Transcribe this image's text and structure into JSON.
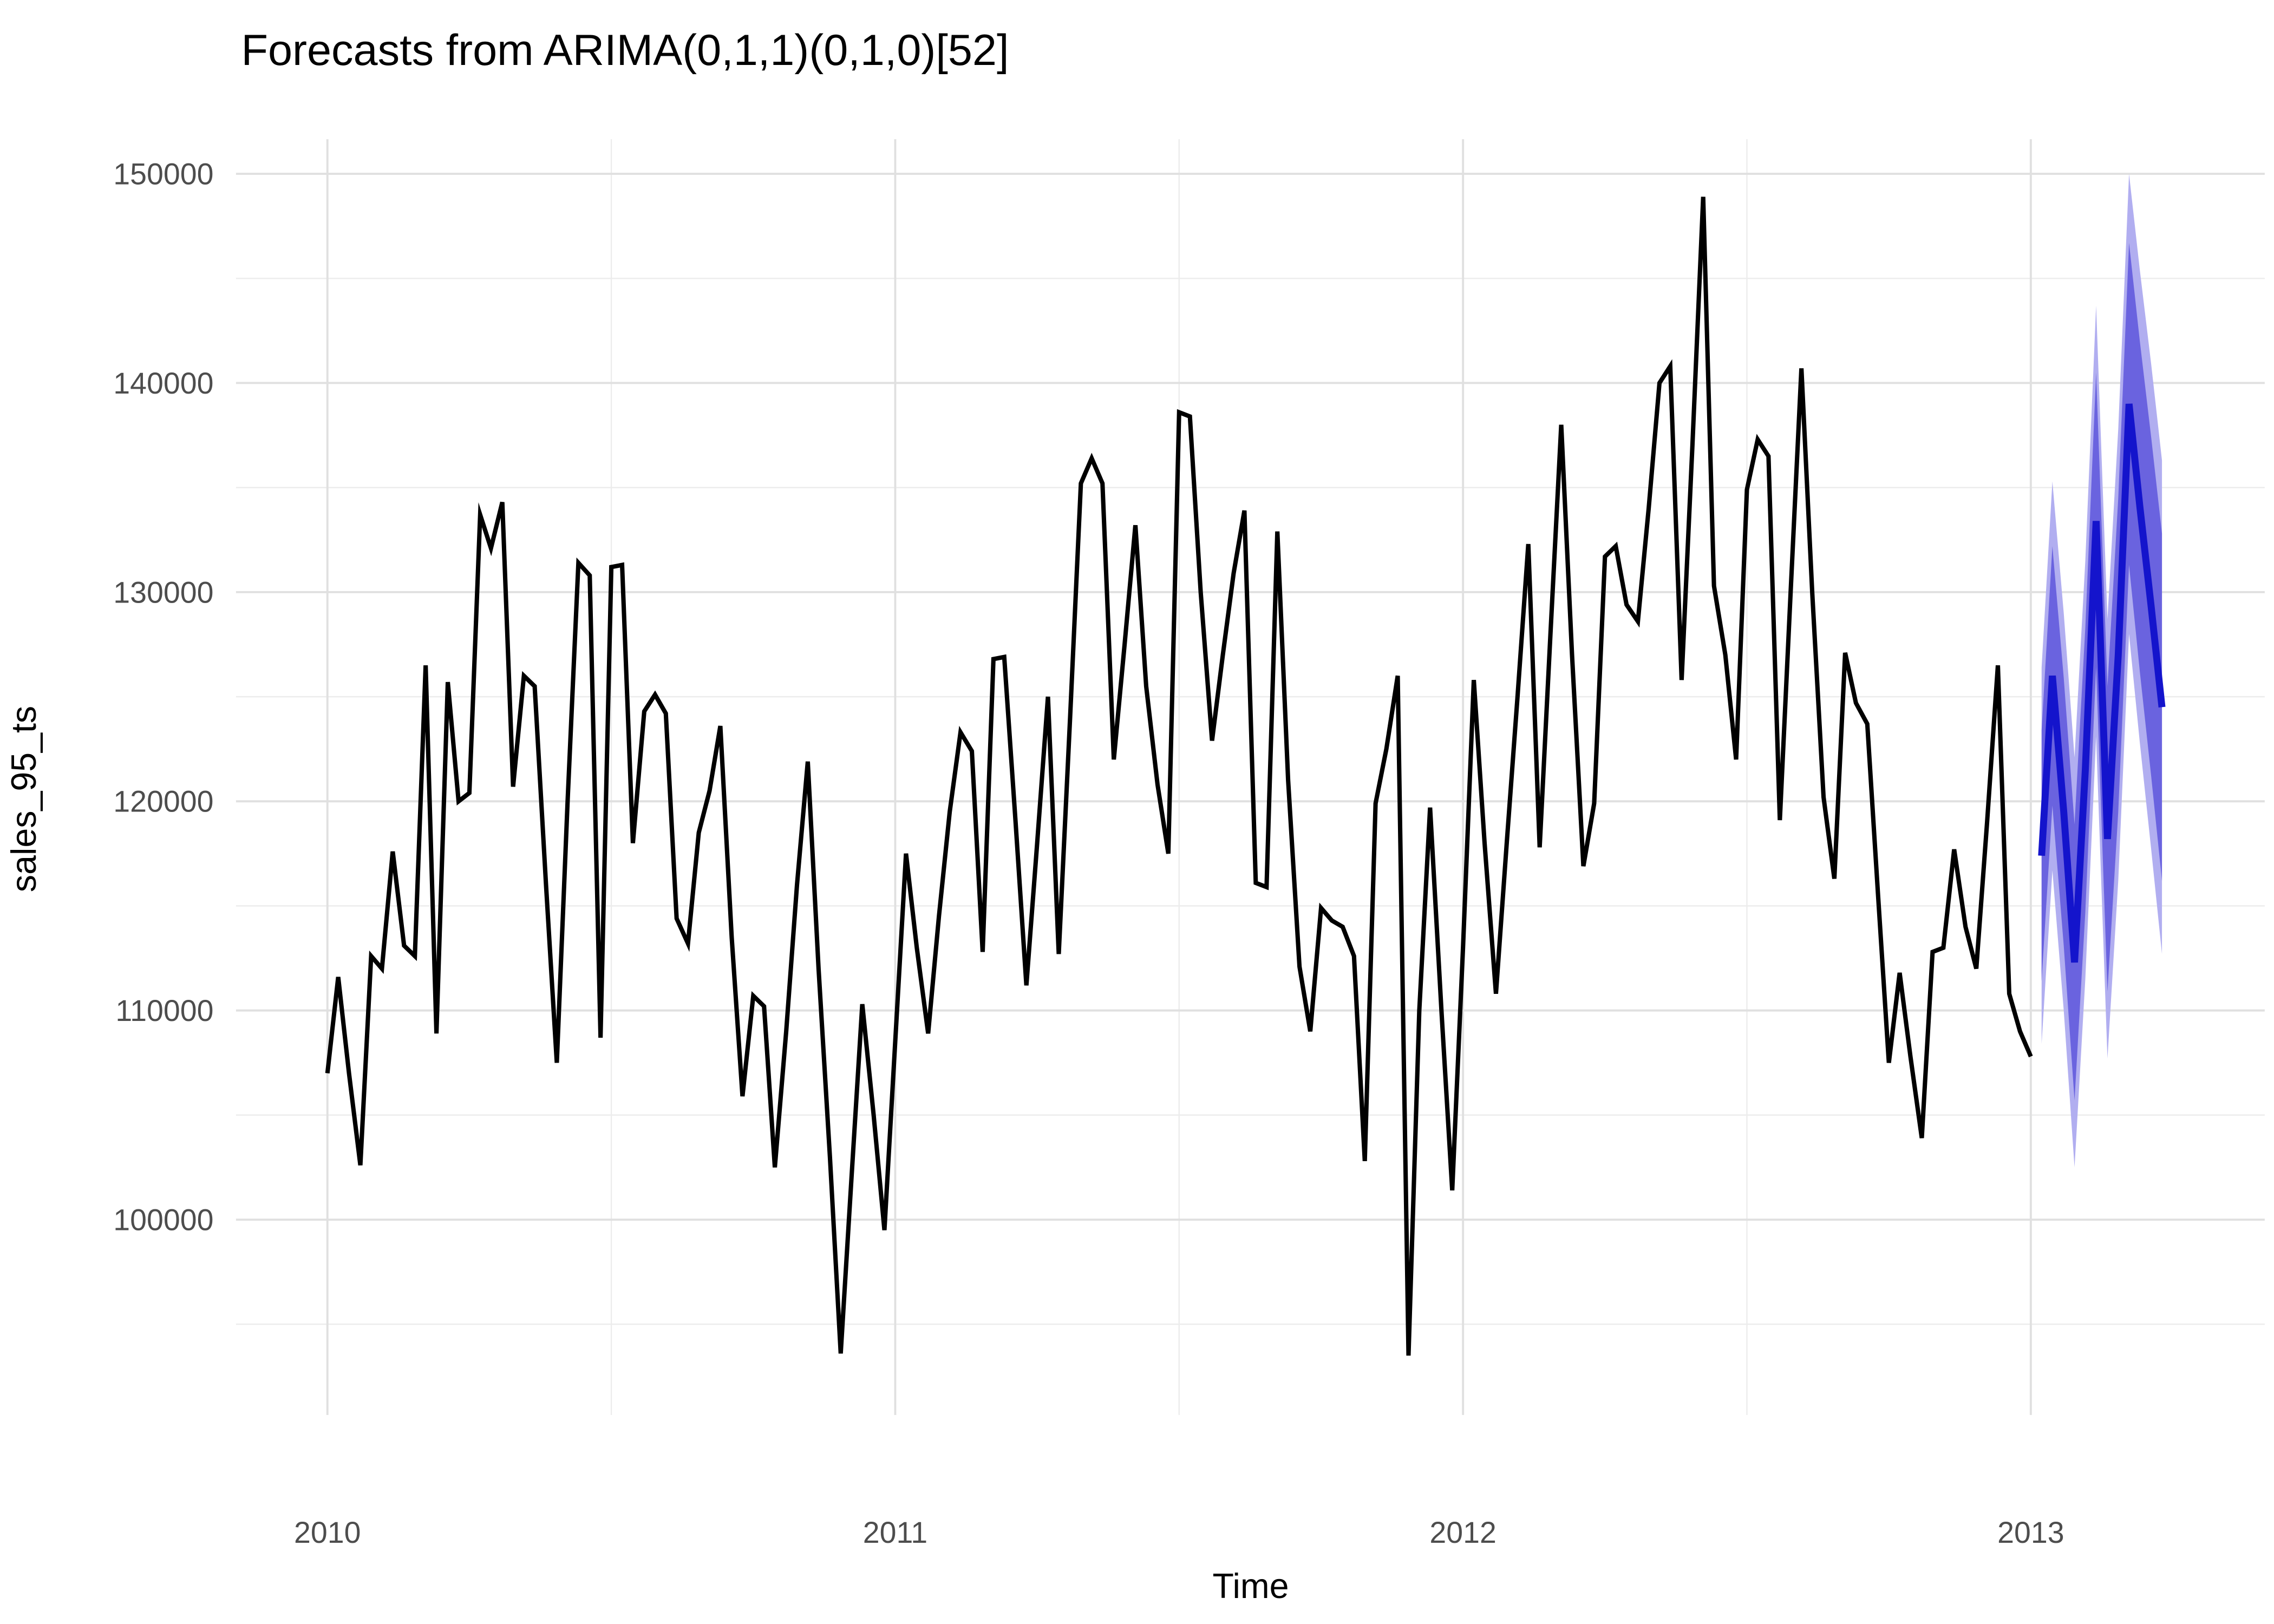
{
  "chart_data": {
    "type": "line",
    "title": "Forecasts from ARIMA(0,1,1)(0,1,0)[52]",
    "xlabel": "Time",
    "ylabel": "sales_95_ts",
    "x_range": [
      2009.839,
      2013.412
    ],
    "y_range": [
      90660,
      151656
    ],
    "x_major_ticks": [
      2010,
      2011,
      2012,
      2013
    ],
    "x_major_tick_labels": [
      "2010",
      "2011",
      "2012",
      "2013"
    ],
    "x_minor_ticks": [
      2010.5,
      2011.5,
      2012.5
    ],
    "y_major_ticks": [
      100000,
      110000,
      120000,
      130000,
      140000,
      150000
    ],
    "y_major_tick_labels": [
      "100000",
      "110000",
      "120000",
      "130000",
      "140000",
      "150000"
    ],
    "y_minor_ticks": [
      95000,
      105000,
      115000,
      125000,
      135000,
      145000
    ],
    "grid": true,
    "legend_position": "none",
    "colors": {
      "background": "#ffffff",
      "grid_major": "#e0e0e0",
      "grid_minor": "#ececec",
      "observed_line": "#000000",
      "forecast_line": "#1414cc",
      "band_80": "#6a63df",
      "band_95": "#b1aef0",
      "tick_text": "#4d4d4d",
      "title_text": "#000000"
    },
    "series": [
      {
        "name": "observed",
        "points": [
          [
            2010.0,
            107000
          ],
          [
            2010.019,
            111600
          ],
          [
            2010.038,
            107000
          ],
          [
            2010.058,
            102600
          ],
          [
            2010.077,
            112600
          ],
          [
            2010.096,
            112000
          ],
          [
            2010.115,
            117600
          ],
          [
            2010.135,
            113100
          ],
          [
            2010.154,
            112600
          ],
          [
            2010.173,
            126500
          ],
          [
            2010.192,
            108900
          ],
          [
            2010.212,
            125700
          ],
          [
            2010.231,
            120000
          ],
          [
            2010.25,
            120400
          ],
          [
            2010.269,
            133700
          ],
          [
            2010.288,
            132100
          ],
          [
            2010.308,
            134300
          ],
          [
            2010.327,
            120700
          ],
          [
            2010.346,
            126000
          ],
          [
            2010.365,
            125500
          ],
          [
            2010.385,
            116000
          ],
          [
            2010.404,
            107500
          ],
          [
            2010.423,
            120000
          ],
          [
            2010.442,
            131400
          ],
          [
            2010.462,
            130800
          ],
          [
            2010.481,
            108700
          ],
          [
            2010.5,
            131200
          ],
          [
            2010.519,
            131300
          ],
          [
            2010.538,
            118000
          ],
          [
            2010.558,
            124300
          ],
          [
            2010.577,
            125100
          ],
          [
            2010.596,
            124200
          ],
          [
            2010.615,
            114400
          ],
          [
            2010.635,
            113200
          ],
          [
            2010.654,
            118500
          ],
          [
            2010.673,
            120500
          ],
          [
            2010.692,
            123600
          ],
          [
            2010.712,
            113500
          ],
          [
            2010.731,
            105900
          ],
          [
            2010.75,
            110700
          ],
          [
            2010.769,
            110200
          ],
          [
            2010.788,
            102500
          ],
          [
            2010.808,
            109000
          ],
          [
            2010.827,
            116000
          ],
          [
            2010.846,
            121900
          ],
          [
            2010.865,
            112000
          ],
          [
            2010.885,
            103000
          ],
          [
            2010.904,
            93600
          ],
          [
            2010.923,
            102000
          ],
          [
            2010.942,
            110300
          ],
          [
            2010.962,
            105000
          ],
          [
            2010.981,
            99500
          ],
          [
            2011.0,
            108500
          ],
          [
            2011.019,
            117500
          ],
          [
            2011.038,
            113000
          ],
          [
            2011.058,
            108900
          ],
          [
            2011.077,
            114500
          ],
          [
            2011.096,
            119500
          ],
          [
            2011.115,
            123300
          ],
          [
            2011.135,
            122400
          ],
          [
            2011.154,
            112800
          ],
          [
            2011.173,
            126800
          ],
          [
            2011.192,
            126900
          ],
          [
            2011.212,
            119000
          ],
          [
            2011.231,
            111200
          ],
          [
            2011.25,
            118000
          ],
          [
            2011.269,
            125000
          ],
          [
            2011.288,
            112700
          ],
          [
            2011.308,
            124000
          ],
          [
            2011.327,
            135200
          ],
          [
            2011.346,
            136400
          ],
          [
            2011.365,
            135200
          ],
          [
            2011.385,
            122000
          ],
          [
            2011.404,
            127500
          ],
          [
            2011.423,
            133200
          ],
          [
            2011.442,
            125500
          ],
          [
            2011.462,
            120800
          ],
          [
            2011.481,
            117500
          ],
          [
            2011.5,
            138600
          ],
          [
            2011.519,
            138400
          ],
          [
            2011.538,
            130000
          ],
          [
            2011.558,
            122900
          ],
          [
            2011.577,
            127000
          ],
          [
            2011.596,
            130900
          ],
          [
            2011.615,
            133900
          ],
          [
            2011.635,
            116100
          ],
          [
            2011.654,
            115900
          ],
          [
            2011.673,
            132900
          ],
          [
            2011.692,
            121000
          ],
          [
            2011.712,
            112100
          ],
          [
            2011.731,
            109000
          ],
          [
            2011.75,
            114900
          ],
          [
            2011.769,
            114300
          ],
          [
            2011.788,
            114000
          ],
          [
            2011.808,
            112600
          ],
          [
            2011.827,
            102800
          ],
          [
            2011.846,
            119900
          ],
          [
            2011.865,
            122500
          ],
          [
            2011.885,
            126000
          ],
          [
            2011.904,
            93500
          ],
          [
            2011.923,
            110000
          ],
          [
            2011.942,
            119700
          ],
          [
            2011.962,
            110000
          ],
          [
            2011.981,
            101400
          ],
          [
            2012.0,
            113000
          ],
          [
            2012.019,
            125800
          ],
          [
            2012.038,
            118000
          ],
          [
            2012.058,
            110800
          ],
          [
            2012.077,
            118000
          ],
          [
            2012.096,
            125000
          ],
          [
            2012.115,
            132300
          ],
          [
            2012.135,
            117800
          ],
          [
            2012.154,
            128000
          ],
          [
            2012.173,
            138000
          ],
          [
            2012.192,
            127000
          ],
          [
            2012.212,
            116900
          ],
          [
            2012.231,
            119900
          ],
          [
            2012.25,
            131700
          ],
          [
            2012.269,
            132200
          ],
          [
            2012.288,
            129400
          ],
          [
            2012.308,
            128600
          ],
          [
            2012.327,
            134000
          ],
          [
            2012.346,
            140000
          ],
          [
            2012.365,
            140800
          ],
          [
            2012.385,
            125800
          ],
          [
            2012.404,
            137000
          ],
          [
            2012.423,
            148900
          ],
          [
            2012.442,
            130300
          ],
          [
            2012.462,
            127000
          ],
          [
            2012.481,
            122000
          ],
          [
            2012.5,
            134900
          ],
          [
            2012.519,
            137300
          ],
          [
            2012.538,
            136500
          ],
          [
            2012.558,
            119100
          ],
          [
            2012.577,
            130000
          ],
          [
            2012.596,
            140700
          ],
          [
            2012.615,
            130000
          ],
          [
            2012.635,
            120200
          ],
          [
            2012.654,
            116300
          ],
          [
            2012.673,
            127100
          ],
          [
            2012.692,
            124700
          ],
          [
            2012.712,
            123700
          ],
          [
            2012.731,
            115500
          ],
          [
            2012.75,
            107500
          ],
          [
            2012.769,
            111800
          ],
          [
            2012.788,
            107800
          ],
          [
            2012.808,
            103900
          ],
          [
            2012.827,
            112800
          ],
          [
            2012.846,
            113000
          ],
          [
            2012.865,
            117700
          ],
          [
            2012.885,
            114000
          ],
          [
            2012.904,
            112000
          ],
          [
            2012.923,
            119000
          ],
          [
            2012.942,
            126500
          ],
          [
            2012.962,
            110800
          ],
          [
            2012.981,
            109000
          ],
          [
            2013.0,
            107800
          ]
        ]
      },
      {
        "name": "forecast_mean",
        "points": [
          [
            2013.019,
            117400
          ],
          [
            2013.038,
            126000
          ],
          [
            2013.058,
            119500
          ],
          [
            2013.077,
            112300
          ],
          [
            2013.096,
            121500
          ],
          [
            2013.115,
            133400
          ],
          [
            2013.135,
            118200
          ],
          [
            2013.154,
            127000
          ],
          [
            2013.173,
            139000
          ],
          [
            2013.192,
            134100
          ],
          [
            2013.212,
            129300
          ],
          [
            2013.231,
            124500
          ]
        ]
      }
    ],
    "prediction_intervals": {
      "columns": [
        "t",
        "lower95",
        "lower80",
        "upper80",
        "upper95"
      ],
      "rows": [
        [
          2013.019,
          108400,
          111400,
          123400,
          126400
        ],
        [
          2013.038,
          116700,
          119800,
          132200,
          135300
        ],
        [
          2013.058,
          110000,
          113100,
          125900,
          129000
        ],
        [
          2013.077,
          102500,
          105700,
          118900,
          122100
        ],
        [
          2013.096,
          111500,
          114700,
          128300,
          131500
        ],
        [
          2013.115,
          123100,
          126400,
          140500,
          143700
        ],
        [
          2013.135,
          107700,
          110900,
          125500,
          128700
        ],
        [
          2013.154,
          116200,
          119500,
          134500,
          137800
        ],
        [
          2013.173,
          128000,
          131300,
          146700,
          150000
        ],
        [
          2013.192,
          122800,
          126200,
          142000,
          145400
        ],
        [
          2013.212,
          117700,
          121200,
          137400,
          140900
        ],
        [
          2013.231,
          112700,
          116200,
          132800,
          136300
        ]
      ]
    }
  }
}
